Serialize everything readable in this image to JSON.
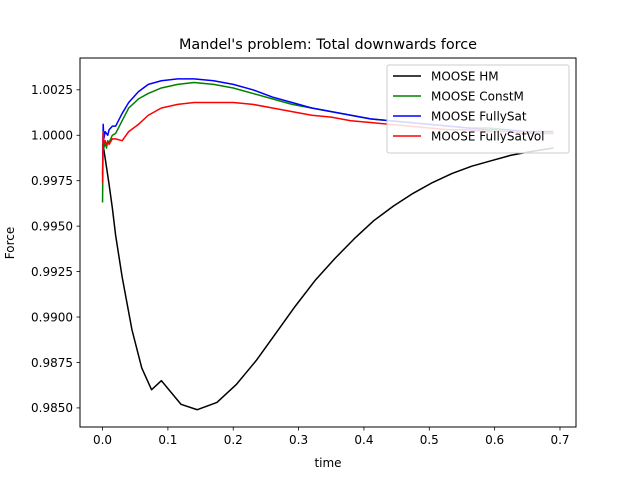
{
  "chart_data": {
    "type": "line",
    "title": "Mandel's problem: Total downwards force",
    "xlabel": "time",
    "ylabel": "Force",
    "xlim": [
      -0.0345,
      0.7245
    ],
    "ylim": [
      0.98395,
      1.00425
    ],
    "xticks": [
      0.0,
      0.1,
      0.2,
      0.3,
      0.4,
      0.5,
      0.6,
      0.7
    ],
    "xtick_labels": [
      "0.0",
      "0.1",
      "0.2",
      "0.3",
      "0.4",
      "0.5",
      "0.6",
      "0.7"
    ],
    "yticks": [
      0.985,
      0.9875,
      0.99,
      0.9925,
      0.995,
      0.9975,
      1.0,
      1.0025
    ],
    "ytick_labels": [
      "0.9850",
      "0.9875",
      "0.9900",
      "0.9925",
      "0.9950",
      "0.9975",
      "1.0000",
      "1.0025"
    ],
    "grid": false,
    "legend_position": "top-right",
    "series": [
      {
        "name": "MOOSE HM",
        "color": "#000000",
        "x": [
          0.0,
          0.002,
          0.005,
          0.01,
          0.015,
          0.02,
          0.03,
          0.045,
          0.06,
          0.075,
          0.09,
          0.12,
          0.145,
          0.175,
          0.205,
          0.235,
          0.265,
          0.295,
          0.325,
          0.355,
          0.385,
          0.415,
          0.445,
          0.475,
          0.505,
          0.535,
          0.565,
          0.595,
          0.625,
          0.655,
          0.69
        ],
        "y": [
          0.9995,
          0.9992,
          0.9985,
          0.9973,
          0.996,
          0.9945,
          0.9922,
          0.9893,
          0.9872,
          0.986,
          0.9865,
          0.9852,
          0.9849,
          0.9853,
          0.9863,
          0.9876,
          0.9891,
          0.9906,
          0.992,
          0.9932,
          0.9943,
          0.9953,
          0.9961,
          0.9968,
          0.9974,
          0.9979,
          0.9983,
          0.9986,
          0.9989,
          0.9991,
          0.9993
        ]
      },
      {
        "name": "MOOSE ConstM",
        "color": "#008000",
        "x": [
          0.0,
          0.001,
          0.002,
          0.004,
          0.006,
          0.008,
          0.01,
          0.015,
          0.02,
          0.03,
          0.04,
          0.055,
          0.07,
          0.09,
          0.115,
          0.14,
          0.17,
          0.2,
          0.23,
          0.26,
          0.29,
          0.32,
          0.35,
          0.38,
          0.41,
          0.44,
          0.47,
          0.5,
          0.53,
          0.56,
          0.59,
          0.62,
          0.65,
          0.69
        ],
        "y": [
          0.9963,
          1.0003,
          0.9993,
          0.9996,
          0.9993,
          0.9997,
          0.9996,
          1.0,
          1.0001,
          1.0008,
          1.0015,
          1.002,
          1.0023,
          1.0026,
          1.0028,
          1.0029,
          1.0028,
          1.0026,
          1.0023,
          1.002,
          1.0017,
          1.0015,
          1.0013,
          1.0011,
          1.0009,
          1.0008,
          1.0007,
          1.0006,
          1.0005,
          1.0004,
          1.0004,
          1.0003,
          1.0002,
          1.0002
        ]
      },
      {
        "name": "MOOSE FullySat",
        "color": "#0000ff",
        "x": [
          0.0,
          0.001,
          0.002,
          0.004,
          0.006,
          0.008,
          0.01,
          0.015,
          0.02,
          0.03,
          0.04,
          0.055,
          0.07,
          0.09,
          0.115,
          0.14,
          0.17,
          0.2,
          0.23,
          0.26,
          0.29,
          0.32,
          0.35,
          0.38,
          0.41,
          0.44,
          0.47,
          0.5,
          0.53,
          0.56,
          0.59,
          0.62,
          0.65,
          0.69
        ],
        "y": [
          0.9978,
          1.0006,
          0.9998,
          1.0002,
          1.0001,
          1.0,
          1.0003,
          1.0005,
          1.0005,
          1.0012,
          1.0018,
          1.0024,
          1.0028,
          1.003,
          1.0031,
          1.0031,
          1.003,
          1.0028,
          1.0025,
          1.0021,
          1.0018,
          1.0015,
          1.0013,
          1.0011,
          1.0009,
          1.0008,
          1.0007,
          1.0006,
          1.0005,
          1.0004,
          1.0003,
          1.0003,
          1.0002,
          1.0002
        ]
      },
      {
        "name": "MOOSE FullySatVol",
        "color": "#ff0000",
        "x": [
          0.0,
          0.001,
          0.002,
          0.004,
          0.006,
          0.008,
          0.01,
          0.015,
          0.02,
          0.03,
          0.04,
          0.055,
          0.07,
          0.09,
          0.115,
          0.14,
          0.17,
          0.2,
          0.23,
          0.26,
          0.29,
          0.32,
          0.35,
          0.38,
          0.41,
          0.44,
          0.47,
          0.5,
          0.53,
          0.56,
          0.59,
          0.62,
          0.65,
          0.69
        ],
        "y": [
          0.9974,
          1.0002,
          0.9996,
          0.9997,
          0.9995,
          0.9996,
          0.9995,
          0.9998,
          0.9998,
          0.9997,
          1.0002,
          1.0006,
          1.0011,
          1.0015,
          1.0017,
          1.0018,
          1.0018,
          1.0018,
          1.0017,
          1.0015,
          1.0013,
          1.0011,
          1.001,
          1.0008,
          1.0007,
          1.0006,
          1.0005,
          1.0004,
          1.0003,
          1.0003,
          1.0002,
          1.0002,
          1.0001,
          1.0001
        ]
      }
    ]
  }
}
